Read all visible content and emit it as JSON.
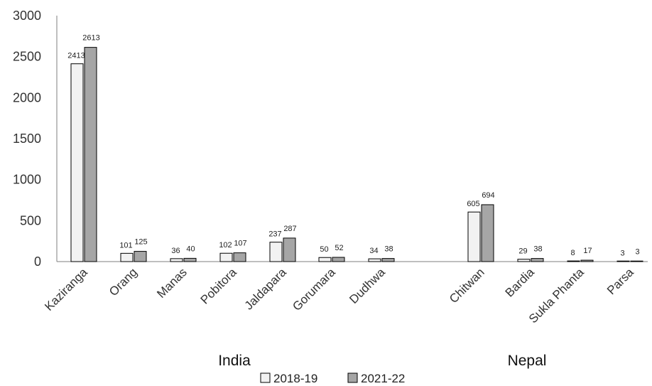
{
  "chart_data": {
    "type": "bar",
    "categories": [
      "Kaziranga",
      "Orang",
      "Manas",
      "Pobitora",
      "Jaldapara",
      "Gorumara",
      "Dudhwa",
      "Chitwan",
      "Bardia",
      "Sukla Phanta",
      "Parsa"
    ],
    "groups": [
      {
        "label": "India",
        "categories": [
          "Kaziranga",
          "Orang",
          "Manas",
          "Pobitora",
          "Jaldapara",
          "Gorumara",
          "Dudhwa"
        ]
      },
      {
        "label": "Nepal",
        "categories": [
          "Chitwan",
          "Bardia",
          "Sukla Phanta",
          "Parsa"
        ]
      }
    ],
    "series": [
      {
        "name": "2018-19",
        "color": "#f2f2f2",
        "values": [
          2413,
          101,
          36,
          102,
          237,
          50,
          34,
          605,
          29,
          8,
          3
        ]
      },
      {
        "name": "2021-22",
        "color": "#a6a6a6",
        "values": [
          2613,
          125,
          40,
          107,
          287,
          52,
          38,
          694,
          38,
          17,
          3
        ]
      }
    ],
    "ylim": [
      0,
      3000
    ],
    "yticks": [
      0,
      500,
      1000,
      1500,
      2000,
      2500,
      3000
    ],
    "grid": false,
    "legend": "bottom",
    "data_labels": true
  }
}
